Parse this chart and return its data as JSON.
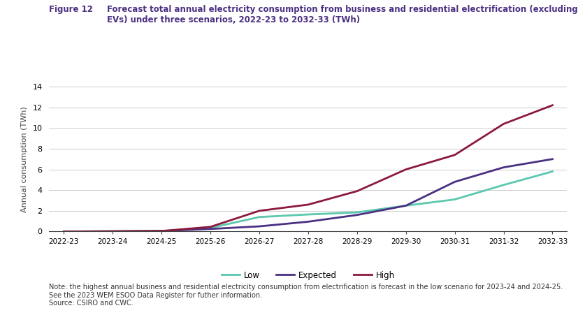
{
  "title_figure": "Figure 12",
  "title_text": "Forecast total annual electricity consumption from business and residential electrification (excluding\nEVs) under three scenarios, 2022-23 to 2032-33 (TWh)",
  "ylabel": "Annual consumption (TWh)",
  "ylim": [
    0,
    14
  ],
  "yticks": [
    0,
    2,
    4,
    6,
    8,
    10,
    12,
    14
  ],
  "categories": [
    "2022-23",
    "2023-24",
    "2024-25",
    "2025-26",
    "2026-27",
    "2027-28",
    "2028-29",
    "2029-30",
    "2030-31",
    "2031-32",
    "2032-33"
  ],
  "low": [
    0.0,
    0.02,
    0.05,
    0.35,
    1.4,
    1.65,
    1.85,
    2.5,
    3.1,
    4.5,
    5.8
  ],
  "expected": [
    0.0,
    0.02,
    0.05,
    0.25,
    0.5,
    0.95,
    1.6,
    2.5,
    4.8,
    6.2,
    7.0
  ],
  "high": [
    0.0,
    0.02,
    0.05,
    0.45,
    2.0,
    2.6,
    3.9,
    6.0,
    7.4,
    10.4,
    12.2
  ],
  "color_low": "#5BC8AF",
  "color_expected": "#4B3082",
  "color_high": "#8B1A3C",
  "color_title": "#4B3082",
  "note_text": "Note: the highest annual business and residential electricity consumption from electrification is forecast in the low scenario for 2023-24 and 2024-25.\nSee the 2023 WEM ESOO Data Register for futher information.\nSource: CSIRO and CWC.",
  "background_color": "#FFFFFF",
  "grid_color": "#CCCCCC",
  "linewidth": 2.0
}
